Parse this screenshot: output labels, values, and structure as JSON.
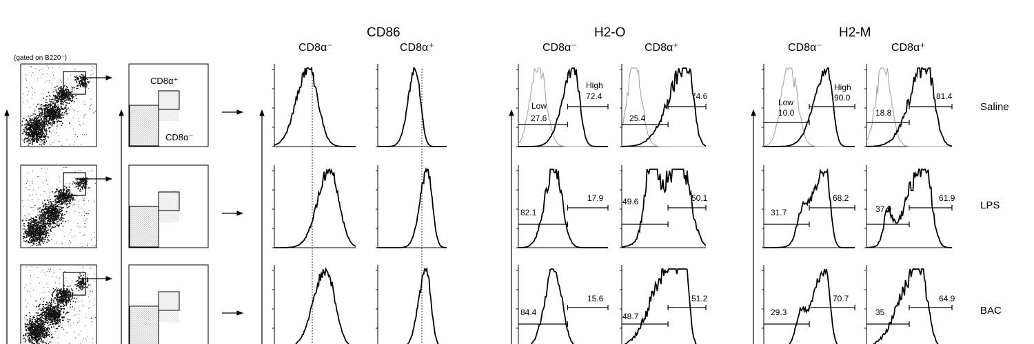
{
  "figure": {
    "gate_note": "(gated on B220⁻)",
    "gate_labels": {
      "cd8_pos": "CD8α⁺",
      "cd8_neg": "CD8α⁻"
    },
    "markers": [
      {
        "name": "CD86"
      },
      {
        "name": "H2-O"
      },
      {
        "name": "H2-M"
      }
    ],
    "subsets": [
      "CD8α⁻",
      "CD8α⁺"
    ],
    "conditions": [
      "Saline",
      "LPS",
      "BAC"
    ],
    "annotations": {
      "h2o_neg_saline": {
        "low_word": "Low",
        "low": "27.6",
        "high_word": "High",
        "high": "72.4"
      },
      "h2o_pos_saline": {
        "low": "25.4",
        "high": "74.6"
      },
      "h2o_neg_lps": {
        "low": "82.1",
        "high": "17.9"
      },
      "h2o_pos_lps": {
        "low": "49.6",
        "high": "50.1"
      },
      "h2o_neg_bac": {
        "low": "84.4",
        "high": "15.6"
      },
      "h2o_pos_bac": {
        "low": "48.7",
        "high": "51.2"
      },
      "h2m_neg_saline": {
        "low_word": "Low",
        "low": "10.0",
        "high_word": "High",
        "high": "90.0"
      },
      "h2m_pos_saline": {
        "low": "18.8",
        "high": "81.4"
      },
      "h2m_neg_lps": {
        "low": "31.7",
        "high": "68.2"
      },
      "h2m_pos_lps": {
        "low": "37.9",
        "high": "61.9"
      },
      "h2m_neg_bac": {
        "low": "29.3",
        "high": "70.7"
      },
      "h2m_pos_bac": {
        "low": "35",
        "high": "64.9"
      }
    }
  }
}
